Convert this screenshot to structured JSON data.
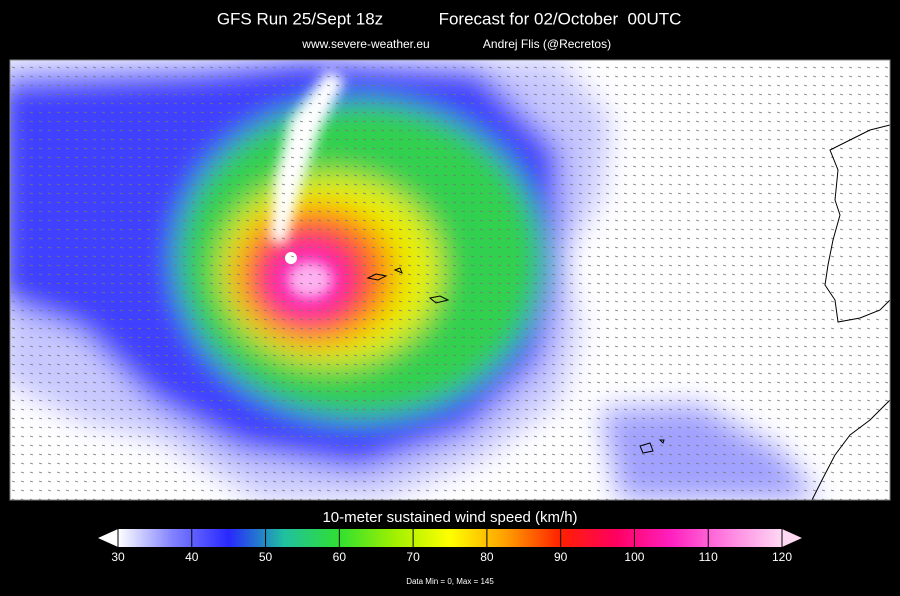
{
  "header": {
    "run": "GFS Run 25/Sept 18z",
    "forecast": "Forecast for 02/October  00UTC",
    "website": "www.severe-weather.eu",
    "author": "Andrej Flis (@Recretos)"
  },
  "colorbar": {
    "label": "10-meter sustained wind speed (km/h)",
    "range": [
      30,
      120
    ],
    "ticks": [
      30,
      40,
      50,
      60,
      70,
      80,
      90,
      100,
      110,
      120
    ],
    "colors": [
      "#ffffff",
      "#8080ff",
      "#2828ff",
      "#20c0a0",
      "#30e030",
      "#a0f000",
      "#ffff00",
      "#ffa000",
      "#ff2000",
      "#ff0060",
      "#ff20c0",
      "#ff80e0",
      "#ffd8f4"
    ]
  },
  "footer": {
    "note": "Data Min = 0, Max = 145"
  }
}
